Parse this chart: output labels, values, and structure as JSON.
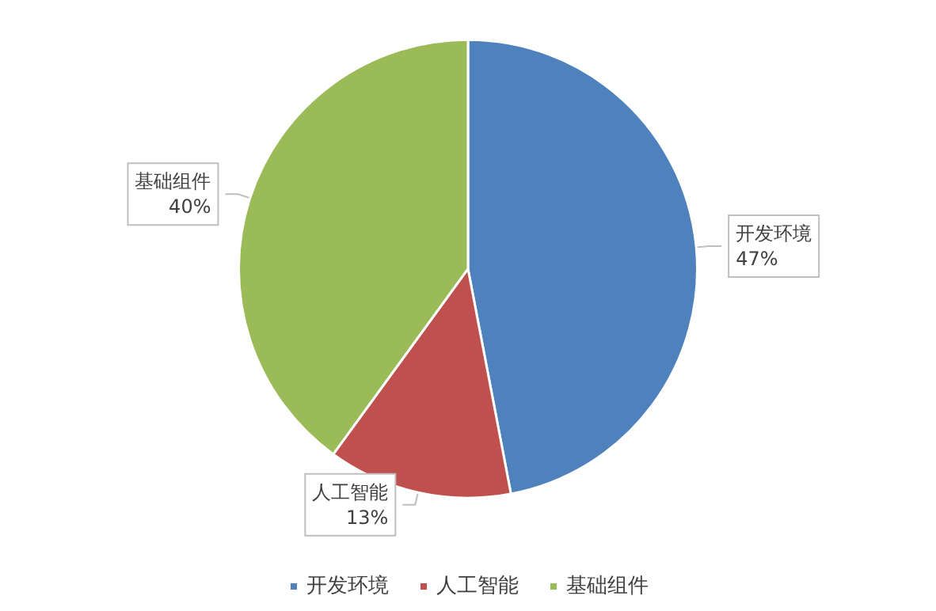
{
  "chart_data": {
    "type": "pie",
    "categories": [
      "开发环境",
      "人工智能",
      "基础组件"
    ],
    "values": [
      47,
      13,
      40
    ],
    "colors": [
      "#4f81bd",
      "#c0504d",
      "#9bbb59"
    ],
    "value_labels": [
      "47%",
      "13%",
      "40%"
    ],
    "legend": "bottom"
  }
}
